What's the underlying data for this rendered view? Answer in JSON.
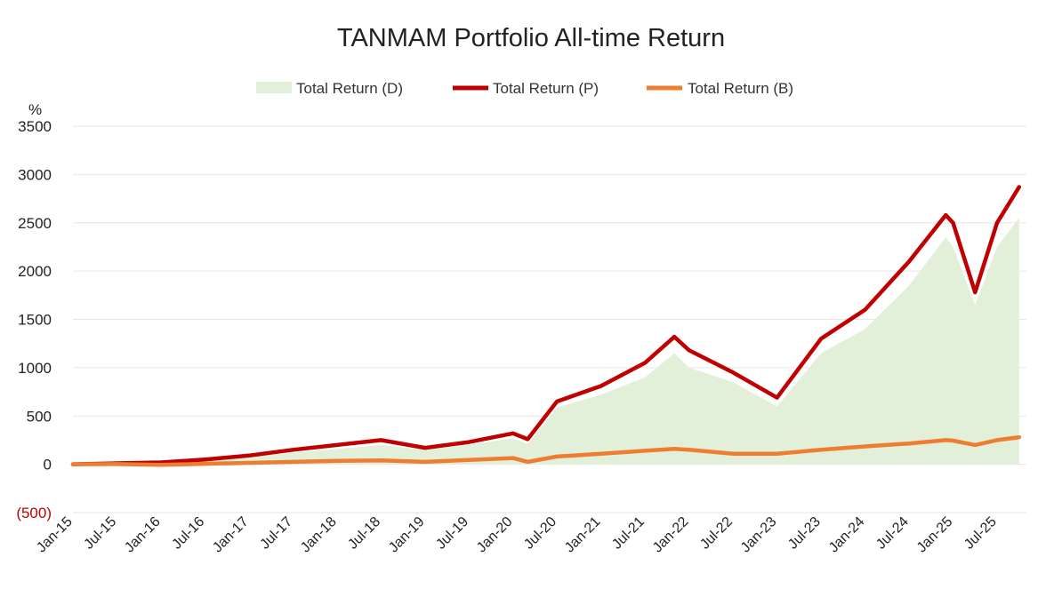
{
  "chart_data": {
    "type": "line",
    "title": "TANMAM Portfolio All-time Return",
    "y_unit": "%",
    "ylim": [
      -500,
      3500
    ],
    "y_ticks": [
      {
        "value": 3500,
        "label": "3500"
      },
      {
        "value": 3000,
        "label": "3000"
      },
      {
        "value": 2500,
        "label": "2500"
      },
      {
        "value": 2000,
        "label": "2000"
      },
      {
        "value": 1500,
        "label": "1500"
      },
      {
        "value": 1000,
        "label": "1000"
      },
      {
        "value": 500,
        "label": "500"
      },
      {
        "value": 0,
        "label": "0"
      },
      {
        "value": -500,
        "label": "(500)"
      }
    ],
    "x_ticks": [
      "Jan-15",
      "Jul-15",
      "Jan-16",
      "Jul-16",
      "Jan-17",
      "Jul-17",
      "Jan-18",
      "Jul-18",
      "Jan-19",
      "Jul-19",
      "Jan-20",
      "Jul-20",
      "Jan-21",
      "Jul-21",
      "Jan-22",
      "Jul-22",
      "Jan-23",
      "Jul-23",
      "Jan-24",
      "Jul-24",
      "Jan-25",
      "Jul-25"
    ],
    "grid": "horizontal",
    "legend_position": "top",
    "series": [
      {
        "name": "Total Return (D)",
        "style": "area",
        "color": "#e2efd9",
        "x": [
          "Jan-15",
          "Jul-15",
          "Jan-16",
          "Jul-16",
          "Jan-17",
          "Jul-17",
          "Jan-18",
          "Jul-18",
          "Jan-19",
          "Jul-19",
          "Jan-20",
          "Mar-20",
          "Jul-20",
          "Jan-21",
          "Jul-21",
          "Nov-21",
          "Jan-22",
          "Jul-22",
          "Jan-23",
          "Jul-23",
          "Jan-24",
          "Jul-24",
          "Dec-24",
          "Jan-25",
          "Apr-25",
          "Jul-25",
          "Oct-25"
        ],
        "values": [
          0,
          8,
          15,
          40,
          75,
          120,
          160,
          200,
          150,
          200,
          270,
          210,
          590,
          720,
          900,
          1150,
          1000,
          850,
          600,
          1150,
          1400,
          1850,
          2350,
          2250,
          1650,
          2250,
          2550
        ]
      },
      {
        "name": "Total Return (P)",
        "style": "line",
        "color": "#c00000",
        "x": [
          "Jan-15",
          "Jul-15",
          "Jan-16",
          "Jul-16",
          "Jan-17",
          "Jul-17",
          "Jan-18",
          "Jul-18",
          "Jan-19",
          "Jul-19",
          "Jan-20",
          "Mar-20",
          "Jul-20",
          "Jan-21",
          "Jul-21",
          "Nov-21",
          "Jan-22",
          "Jul-22",
          "Jan-23",
          "Jul-23",
          "Jan-24",
          "Jul-24",
          "Dec-24",
          "Jan-25",
          "Apr-25",
          "Jul-25",
          "Oct-25"
        ],
        "values": [
          0,
          10,
          20,
          50,
          90,
          150,
          200,
          250,
          170,
          230,
          320,
          260,
          650,
          810,
          1050,
          1320,
          1180,
          950,
          690,
          1300,
          1600,
          2100,
          2580,
          2500,
          1780,
          2500,
          2870
        ]
      },
      {
        "name": "Total Return (B)",
        "style": "line",
        "color": "#ed7d31",
        "x": [
          "Jan-15",
          "Jul-15",
          "Jan-16",
          "Jul-16",
          "Jan-17",
          "Jul-17",
          "Jan-18",
          "Jul-18",
          "Jan-19",
          "Jul-19",
          "Jan-20",
          "Mar-20",
          "Jul-20",
          "Jan-21",
          "Jul-21",
          "Nov-21",
          "Jan-22",
          "Jul-22",
          "Jan-23",
          "Jul-23",
          "Jan-24",
          "Jul-24",
          "Dec-24",
          "Jan-25",
          "Apr-25",
          "Jul-25",
          "Oct-25"
        ],
        "values": [
          0,
          2,
          -5,
          5,
          15,
          25,
          35,
          40,
          25,
          45,
          65,
          25,
          80,
          110,
          140,
          160,
          150,
          110,
          110,
          150,
          185,
          215,
          250,
          245,
          200,
          250,
          280
        ]
      }
    ]
  }
}
